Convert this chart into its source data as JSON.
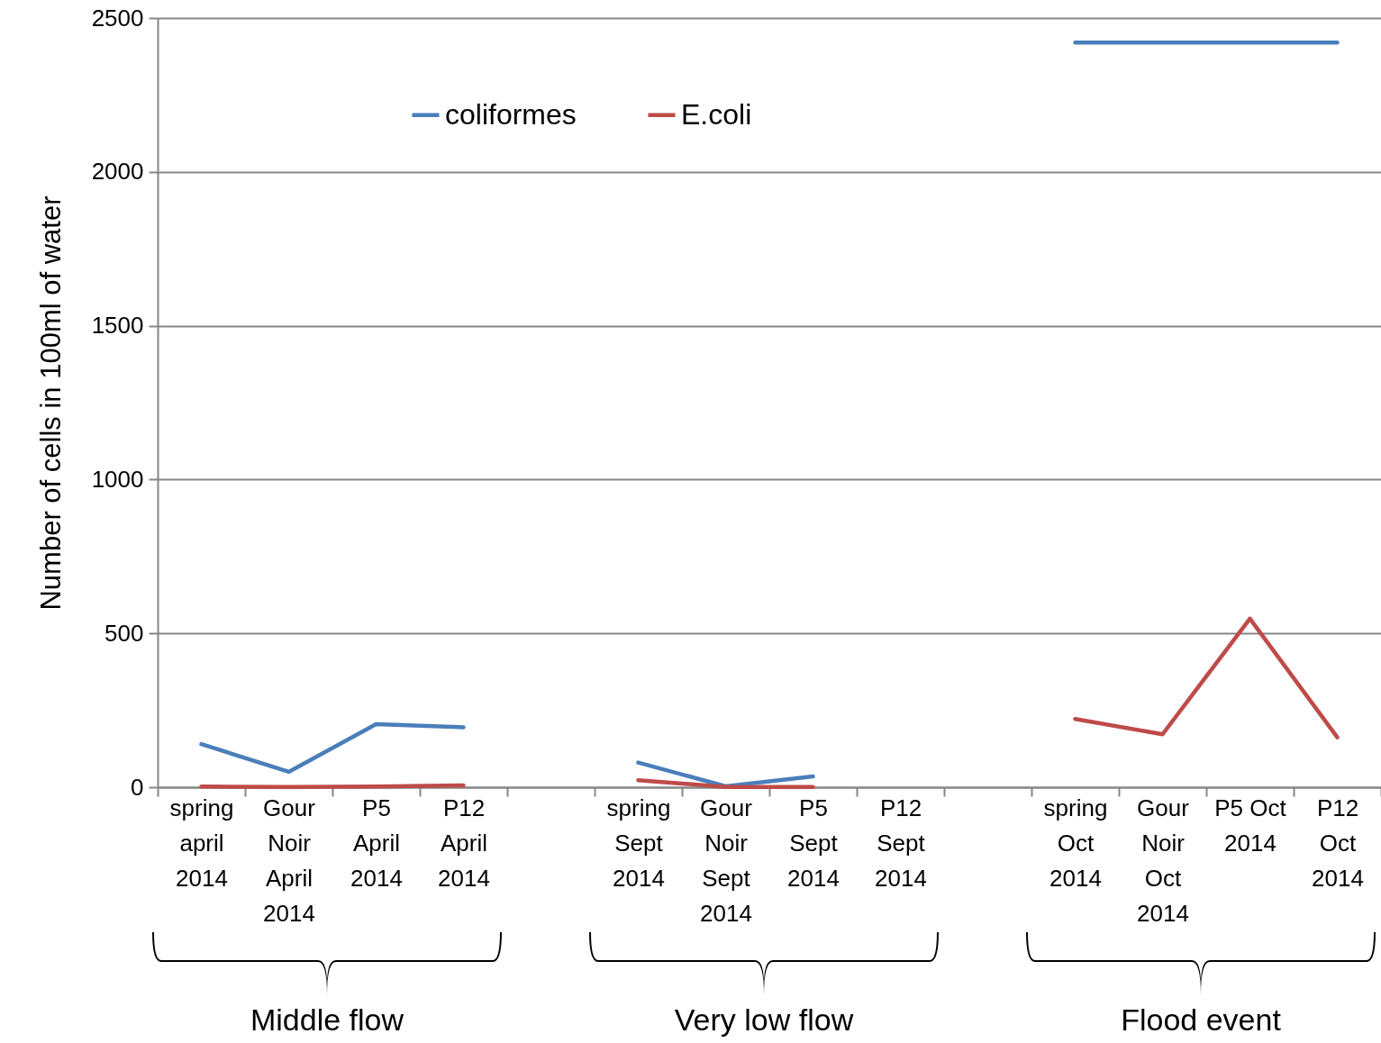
{
  "chart_data": {
    "type": "line",
    "ylabel": "Number of cells in 100ml of water",
    "categories": [
      "spring april 2014",
      "Gour Noir April 2014",
      "P5 April 2014",
      "P12 April 2014",
      null,
      "spring Sept 2014",
      "Gour Noir Sept 2014",
      "P5 Sept 2014",
      "P12 Sept 2014",
      null,
      "spring Oct 2014",
      "Gour Noir Oct 2014",
      "P5 Oct 2014",
      "P12 Oct 2014"
    ],
    "series": [
      {
        "name": "coliformes",
        "color": "#4a7ebb",
        "values": [
          140,
          50,
          205,
          195,
          null,
          80,
          3,
          35,
          null,
          null,
          2420,
          2420,
          2420,
          2420
        ]
      },
      {
        "name": "E.coli",
        "color": "#be4b48",
        "values": [
          2,
          1,
          2,
          6,
          null,
          23,
          1,
          1,
          null,
          null,
          222,
          172,
          548,
          162
        ]
      }
    ],
    "ylim": [
      0,
      2500
    ],
    "yticks": [
      0,
      500,
      1000,
      1500,
      2000,
      2500
    ],
    "grid": "y",
    "legend": "top left",
    "marker": "none",
    "line_style": "solid",
    "annotations": [
      "Middle flow",
      "Very low flow",
      "Flood event"
    ]
  }
}
